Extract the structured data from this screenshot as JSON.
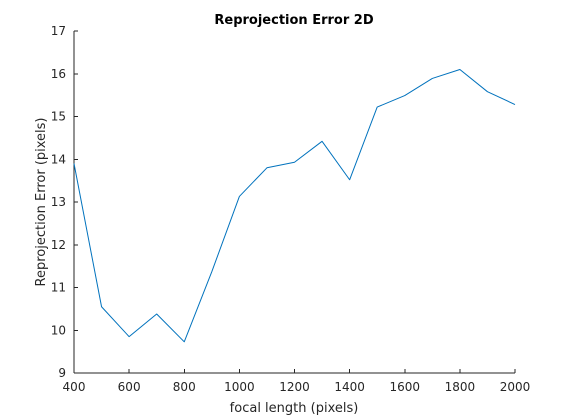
{
  "chart_data": {
    "type": "line",
    "title": "Reprojection Error 2D",
    "xlabel": "focal length (pixels)",
    "ylabel": "Reprojection Error (pixels)",
    "xlim": [
      400,
      2000
    ],
    "ylim": [
      9,
      17
    ],
    "xticks": [
      400,
      600,
      800,
      1000,
      1200,
      1400,
      1600,
      1800,
      2000
    ],
    "yticks": [
      9,
      10,
      11,
      12,
      13,
      14,
      15,
      16,
      17
    ],
    "grid": false,
    "legend": "none",
    "series": [
      {
        "color": "#0072bd",
        "x": [
          400,
          500,
          600,
          700,
          800,
          900,
          1000,
          1100,
          1200,
          1300,
          1400,
          1500,
          1600,
          1700,
          1800,
          1900,
          2000
        ],
        "y": [
          13.9,
          10.55,
          9.85,
          10.38,
          9.73,
          11.37,
          13.13,
          13.8,
          13.93,
          14.42,
          13.52,
          15.22,
          15.49,
          15.89,
          16.1,
          15.58,
          15.28
        ]
      }
    ]
  }
}
